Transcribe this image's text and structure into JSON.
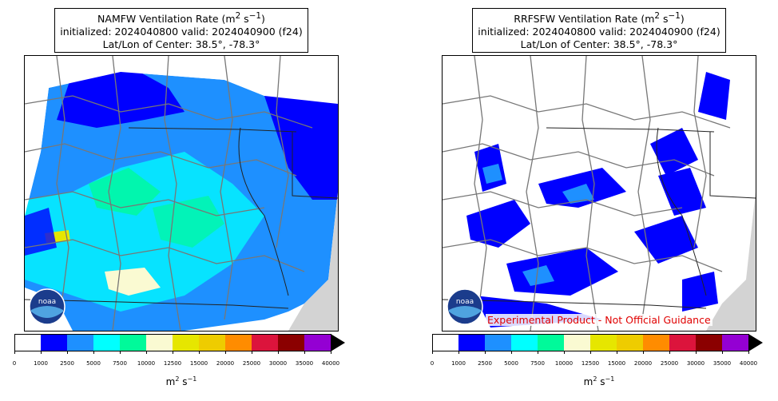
{
  "panels": [
    {
      "id": "left",
      "title_line1_prefix": "NAMFW Ventilation Rate (m",
      "title_line1_sup1": "2",
      "title_line1_mid": " s",
      "title_line1_sup2": "−1",
      "title_line1_suffix": ")",
      "title_line2": "initialized: 2024040800 valid: 2024040900 (f24)",
      "title_line3": "Lat/Lon of Center: 38.5°, -78.3°",
      "disclaimer": ""
    },
    {
      "id": "right",
      "title_line1_prefix": "RRFSFW Ventilation Rate (m",
      "title_line1_sup1": "2",
      "title_line1_mid": " s",
      "title_line1_sup2": "−1",
      "title_line1_suffix": ")",
      "title_line2": "initialized: 2024040800 valid: 2024040900 (f24)",
      "title_line3": "Lat/Lon of Center: 38.5°, -78.3°",
      "disclaimer": "Experimental Product - Not Official Guidance"
    }
  ],
  "logo_text": "noaa",
  "colorbar": {
    "ticks": [
      "0",
      "1000",
      "2500",
      "5000",
      "7500",
      "10000",
      "12500",
      "15000",
      "20000",
      "25000",
      "30000",
      "35000",
      "40000"
    ],
    "colors": [
      "#ffffff",
      "#0000ff",
      "#1e90ff",
      "#00ffff",
      "#00fa9a",
      "#fafad2",
      "#e6e600",
      "#eecc00",
      "#ff8c00",
      "#dc143c",
      "#8b0000",
      "#9400d3"
    ],
    "extend": "max",
    "units_base": "m",
    "units_sup1": "2",
    "units_mid": " s",
    "units_sup2": "−1"
  }
}
